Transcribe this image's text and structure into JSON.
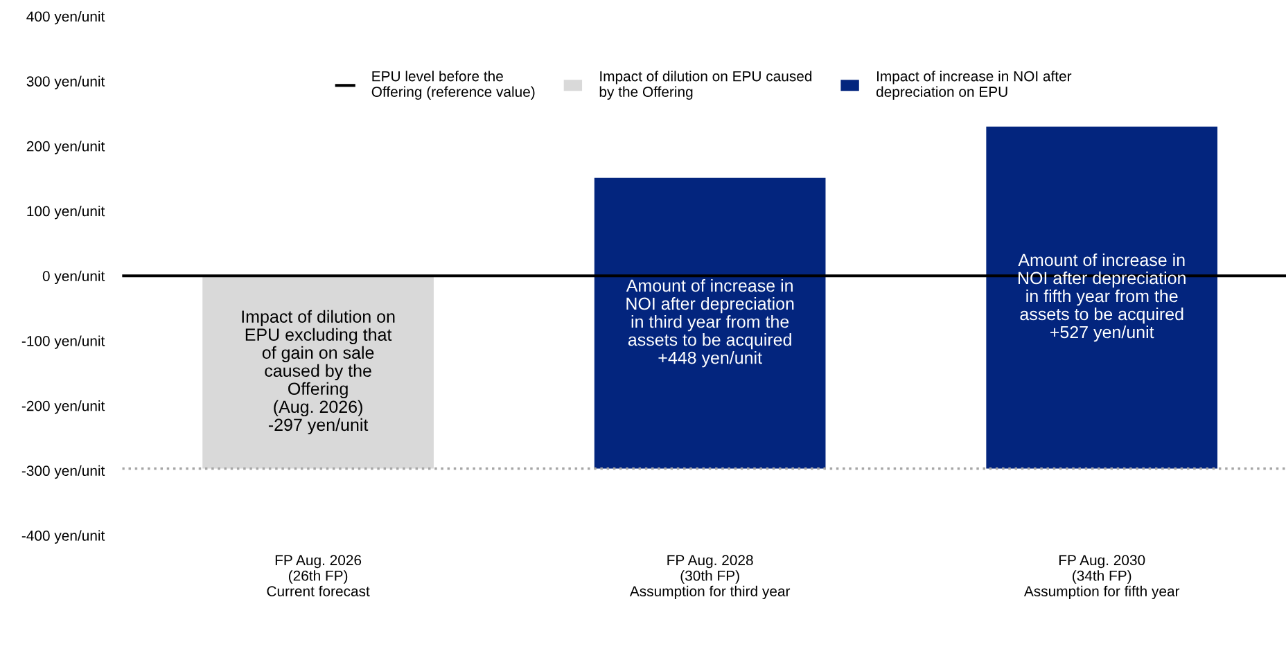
{
  "chart_data": {
    "type": "bar",
    "categories": [
      "FP Aug. 2026\n(26th FP)\nCurrent forecast",
      "FP Aug. 2028\n(30th FP)\nAssumption for third year",
      "FP Aug. 2030\n(34th FP)\nAssumption for fifth year"
    ],
    "series": [
      {
        "name": "Impact of dilution on EPU caused\nby the Offering",
        "color": "#d9d9d9",
        "base": [
          0,
          null,
          null
        ],
        "values": [
          -297,
          null,
          null
        ],
        "value_labels": [
          "Impact of dilution on\nEPU excluding that\nof gain on sale\ncaused by the\nOffering\n(Aug. 2026)\n-297 yen/unit",
          null,
          null
        ]
      },
      {
        "name": "Impact of increase in NOI after\ndepreciation on EPU",
        "color": "#03257e",
        "base": [
          null,
          -297,
          -297
        ],
        "values": [
          null,
          448,
          527
        ],
        "value_labels": [
          null,
          "Amount of increase in\nNOI after depreciation\nin third year from the\nassets to be acquired\n+448 yen/unit",
          "Amount of increase in\nNOI after depreciation\nin fifth year from the\nassets to be acquired\n+527 yen/unit"
        ]
      }
    ],
    "ylim": [
      -400,
      400
    ],
    "yticks": [
      {
        "value": 400,
        "label": "400 yen/unit"
      },
      {
        "value": 300,
        "label": "300 yen/unit"
      },
      {
        "value": 200,
        "label": "200 yen/unit"
      },
      {
        "value": 100,
        "label": "100 yen/unit"
      },
      {
        "value": 0,
        "label": "0 yen/unit"
      },
      {
        "value": -100,
        "label": "-100 yen/unit"
      },
      {
        "value": -200,
        "label": "-200 yen/unit"
      },
      {
        "value": -300,
        "label": "-300 yen/unit"
      },
      {
        "value": -400,
        "label": "-400 yen/unit"
      }
    ],
    "ref_lines": [
      {
        "axis": "y",
        "value": 0,
        "label": "EPU level before the\nOffering (reference value)",
        "color": "#000000",
        "line_style": "solid"
      },
      {
        "axis": "y",
        "value": -297,
        "color": "#a6a6a6",
        "line_style": "dotted"
      }
    ],
    "grid": false,
    "legend": "top"
  }
}
